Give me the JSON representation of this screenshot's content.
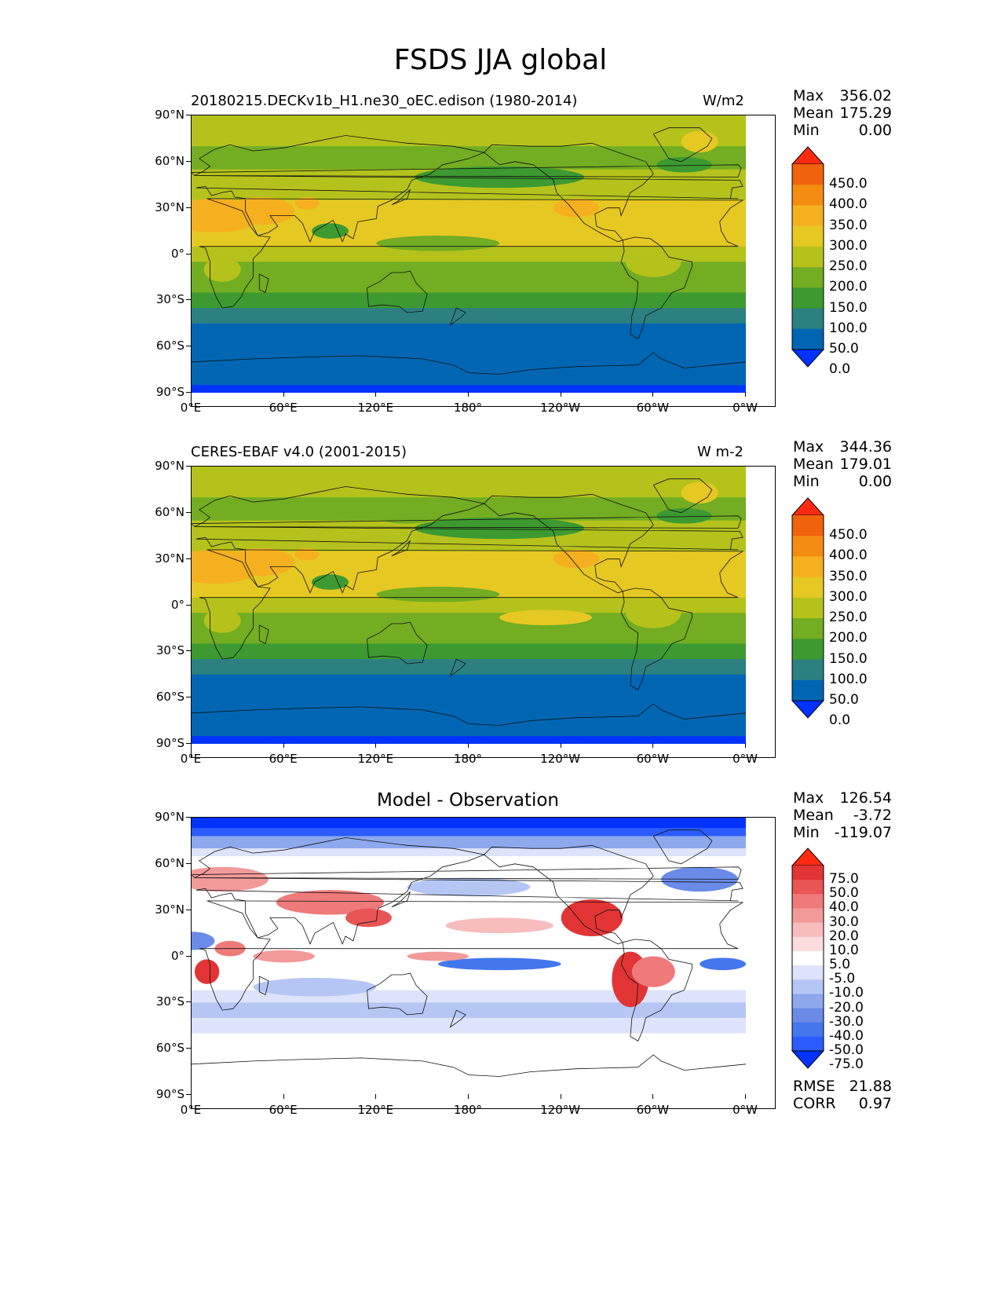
{
  "figure": {
    "title": "FSDS JJA global"
  },
  "axes": {
    "y_ticks": [
      "90°N",
      "60°N",
      "30°N",
      "0°",
      "30°S",
      "60°S",
      "90°S"
    ],
    "x_ticks": [
      "0°E",
      "60°E",
      "120°E",
      "180°",
      "120°W",
      "60°W",
      "0°W"
    ]
  },
  "panels": [
    {
      "title_left": "20180215.DECKv1b_H1.ne30_oEC.edison (1980-2014)",
      "title_right": "W/m2",
      "stats": {
        "max_label": "Max",
        "max": "356.02",
        "mean_label": "Mean",
        "mean": "175.29",
        "min_label": "Min",
        "min": "0.00"
      },
      "colorbar_labels": [
        "450.0",
        "400.0",
        "350.0",
        "300.0",
        "250.0",
        "200.0",
        "150.0",
        "100.0",
        "50.0",
        "0.0"
      ]
    },
    {
      "title_left": "CERES-EBAF v4.0 (2001-2015)",
      "title_right": "W m-2",
      "stats": {
        "max_label": "Max",
        "max": "344.36",
        "mean_label": "Mean",
        "mean": "179.01",
        "min_label": "Min",
        "min": "0.00"
      },
      "colorbar_labels": [
        "450.0",
        "400.0",
        "350.0",
        "300.0",
        "250.0",
        "200.0",
        "150.0",
        "100.0",
        "50.0",
        "0.0"
      ]
    },
    {
      "title_center": "Model - Observation",
      "stats": {
        "max_label": "Max",
        "max": "126.54",
        "mean_label": "Mean",
        "mean": "-3.72",
        "min_label": "Min",
        "min": "-119.07"
      },
      "colorbar_labels": [
        "75.0",
        "50.0",
        "40.0",
        "30.0",
        "20.0",
        "10.0",
        "5.0",
        "-5.0",
        "-10.0",
        "-20.0",
        "-30.0",
        "-40.0",
        "-50.0",
        "-75.0"
      ],
      "metrics": {
        "rmse_label": "RMSE",
        "rmse": "21.88",
        "corr_label": "CORR",
        "corr": "0.97"
      }
    }
  ],
  "colors": {
    "abs_scale": [
      "#0033ff",
      "#0066b3",
      "#2d8080",
      "#3c9a30",
      "#72ad22",
      "#b5c21c",
      "#e6c822",
      "#f5b020",
      "#f58c12",
      "#f0620e",
      "#ff2a10"
    ],
    "diff_scale": [
      "#0033ff",
      "#2a5cff",
      "#4477ee",
      "#6a8ce8",
      "#8ea8ee",
      "#b6c6f4",
      "#dce3fa",
      "#ffffff",
      "#fcdcdc",
      "#f7bcbc",
      "#f29a9a",
      "#ee7a7a",
      "#e85555",
      "#e23434",
      "#ff2a10"
    ]
  }
}
